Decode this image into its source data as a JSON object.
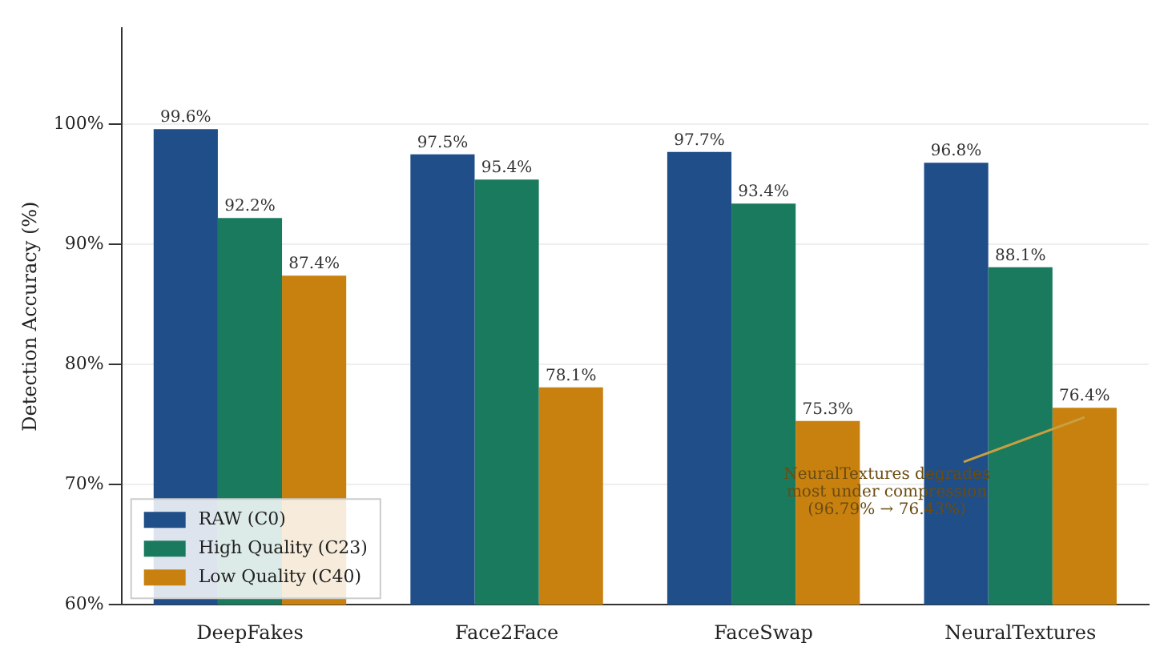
{
  "chart_data": {
    "type": "bar",
    "ylabel": "Detection Accuracy (%)",
    "categories": [
      "DeepFakes",
      "Face2Face",
      "FaceSwap",
      "NeuralTextures"
    ],
    "series": [
      {
        "name": "RAW (C0)",
        "color": "#1f4e89",
        "values": [
          99.6,
          97.5,
          97.7,
          96.8
        ],
        "value_labels": [
          "99.6%",
          "97.5%",
          "97.7%",
          "96.8%"
        ]
      },
      {
        "name": "High Quality (C23)",
        "color": "#1a7a5e",
        "values": [
          92.2,
          95.4,
          93.4,
          88.1
        ],
        "value_labels": [
          "92.2%",
          "95.4%",
          "93.4%",
          "88.1%"
        ]
      },
      {
        "name": "Low Quality (C40)",
        "color": "#c8810f",
        "values": [
          87.4,
          78.1,
          75.3,
          76.4
        ],
        "value_labels": [
          "87.4%",
          "78.1%",
          "75.3%",
          "76.4%"
        ]
      }
    ],
    "ylim": [
      60,
      108
    ],
    "yticks": [
      {
        "value": 60,
        "label": "60%"
      },
      {
        "value": 70,
        "label": "70%"
      },
      {
        "value": 80,
        "label": "80%"
      },
      {
        "value": 90,
        "label": "90%"
      },
      {
        "value": 100,
        "label": "100%"
      }
    ],
    "grid": "y",
    "legend": "bottom left",
    "annotations": [
      "NeuralTextures degrades\nmost under compression\n(96.79% → 76.43%)"
    ]
  }
}
